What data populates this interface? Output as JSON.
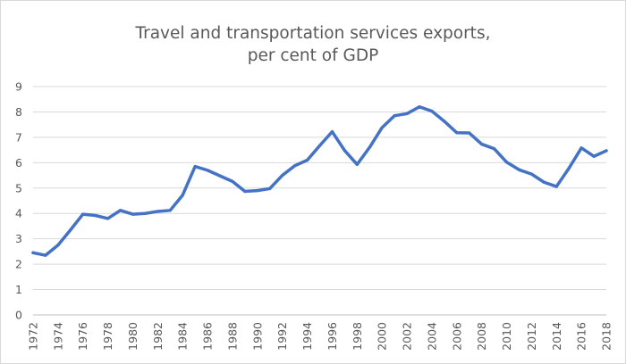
{
  "chart_data": {
    "type": "line",
    "title": [
      "Travel and transportation services exports,",
      "per cent of GDP"
    ],
    "xlabel": "",
    "ylabel": "",
    "ylim": [
      0,
      9
    ],
    "y_ticks": [
      "0",
      "1",
      "2",
      "3",
      "4",
      "5",
      "6",
      "7",
      "8",
      "9"
    ],
    "x_tick_labels": [
      "1972",
      "1974",
      "1976",
      "1978",
      "1980",
      "1982",
      "1984",
      "1986",
      "1988",
      "1990",
      "1992",
      "1994",
      "1996",
      "1998",
      "2000",
      "2002",
      "2004",
      "2006",
      "2008",
      "2010",
      "2012",
      "2014",
      "2016",
      "2018"
    ],
    "grid": true,
    "legend": "none",
    "series": [
      {
        "name": "Travel and transportation services exports, per cent of GDP",
        "color": "#4472c4",
        "x": [
          1972,
          1973,
          1974,
          1975,
          1976,
          1977,
          1978,
          1979,
          1980,
          1981,
          1982,
          1983,
          1984,
          1985,
          1986,
          1987,
          1988,
          1989,
          1990,
          1991,
          1992,
          1993,
          1994,
          1995,
          1996,
          1997,
          1998,
          1999,
          2000,
          2001,
          2002,
          2003,
          2004,
          2005,
          2006,
          2007,
          2008,
          2009,
          2010,
          2011,
          2012,
          2013,
          2014,
          2015,
          2016,
          2017,
          2018
        ],
        "values": [
          2.45,
          2.35,
          2.75,
          3.35,
          3.97,
          3.92,
          3.8,
          4.12,
          3.97,
          4.0,
          4.08,
          4.12,
          4.72,
          5.85,
          5.7,
          5.48,
          5.26,
          4.87,
          4.9,
          4.98,
          5.5,
          5.88,
          6.1,
          6.67,
          7.22,
          6.48,
          5.93,
          6.6,
          7.38,
          7.85,
          7.93,
          8.2,
          8.03,
          7.63,
          7.18,
          7.17,
          6.73,
          6.55,
          6.02,
          5.72,
          5.55,
          5.23,
          5.06,
          5.78,
          6.58,
          6.25,
          6.47
        ]
      }
    ]
  }
}
